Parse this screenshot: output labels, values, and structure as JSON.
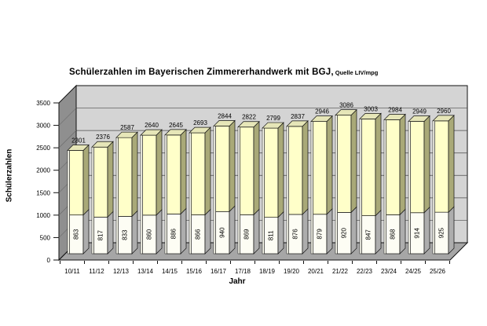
{
  "chart_data": {
    "type": "bar",
    "variant": "3d-stacked-column",
    "title": "Schülerzahlen im Bayerischen Zimmererhandwerk mit BGJ,",
    "subtitle": "Quelle LIV/mpg",
    "xlabel": "Jahr",
    "ylabel": "Schülerzahlen",
    "ylim": [
      0,
      3500
    ],
    "yticks": [
      0,
      500,
      1000,
      1500,
      2000,
      2500,
      3000,
      3500
    ],
    "grid": true,
    "legend": "none",
    "categories": [
      "10/11",
      "11/12",
      "12/13",
      "13/14",
      "14/15",
      "15/16",
      "16/17",
      "17/18",
      "18/19",
      "19/20",
      "20/21",
      "21/22",
      "22/23",
      "23/24",
      "24/25",
      "25/26"
    ],
    "series": [
      {
        "name": "bottom-segment-white",
        "values": [
          863,
          817,
          833,
          860,
          886,
          866,
          940,
          869,
          811,
          876,
          879,
          920,
          847,
          868,
          914,
          925
        ]
      },
      {
        "name": "stacked-total-yellow-top",
        "totals": [
          2301,
          2376,
          2587,
          2640,
          2645,
          2693,
          2844,
          2822,
          2799,
          2837,
          2946,
          3086,
          3003,
          2984,
          2949,
          2960
        ]
      }
    ],
    "colors": {
      "bottom_front": "#fdfdf4",
      "bottom_side": "#adadad",
      "top_front": "#ffffc9",
      "top_side": "#a9a978",
      "top_cap": "#e6e6b8",
      "bar_left_edge": "#fbfbef",
      "back_wall": "#d4d4d4",
      "left_wall": "#8f8f8f",
      "floor": "#a6a6a6",
      "gridline": "#4a4a4a",
      "outline": "#111111",
      "text": "#000000",
      "background": "#ffffff"
    }
  }
}
